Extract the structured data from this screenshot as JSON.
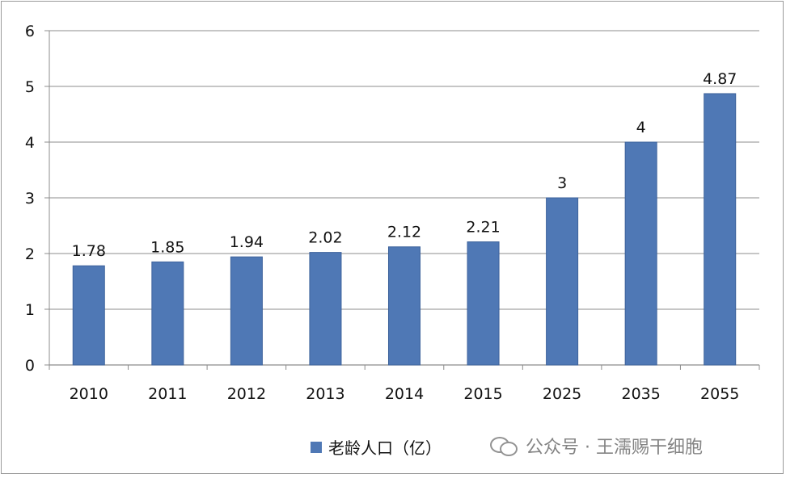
{
  "chart_data": {
    "type": "bar",
    "categories": [
      "2010",
      "2011",
      "2012",
      "2013",
      "2014",
      "2015",
      "2025",
      "2035",
      "2055"
    ],
    "series": [
      {
        "name": "老龄人口（亿）",
        "values": [
          1.78,
          1.85,
          1.94,
          2.02,
          2.12,
          2.21,
          3,
          4,
          4.87
        ]
      }
    ],
    "data_labels": [
      "1.78",
      "1.85",
      "1.94",
      "2.02",
      "2.12",
      "2.21",
      "3",
      "4",
      "4.87"
    ],
    "ylim": [
      0,
      6
    ],
    "yticks": [
      "0",
      "1",
      "2",
      "3",
      "4",
      "5",
      "6"
    ],
    "grid": true,
    "legend_position": "bottom",
    "bar_color": "#4f78b5"
  },
  "legend": {
    "label": "老龄人口（亿）"
  },
  "watermark": {
    "text": "公众号 · 王濡赐干细胞",
    "icon": "wechat-icon"
  }
}
